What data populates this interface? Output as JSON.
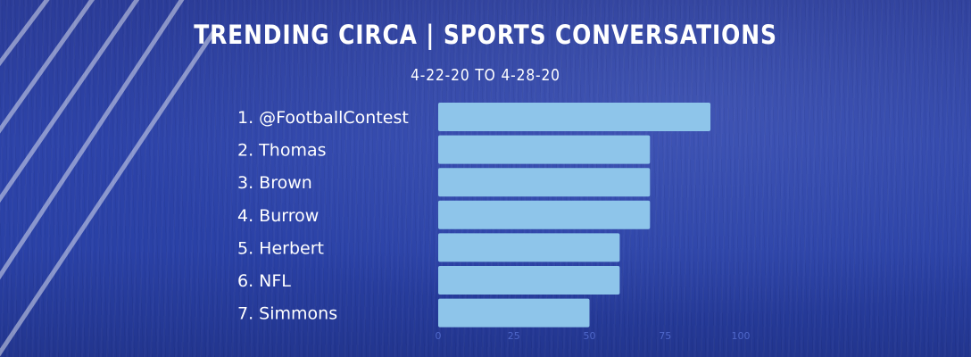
{
  "header": {
    "title": "TRENDING CIRCA | SPORTS CONVERSATIONS",
    "subtitle": "4-22-20  TO  4-28-20"
  },
  "colors": {
    "background": "#2a3f9f",
    "bar": "#8ec5ea",
    "tick_text": "#4f67c9",
    "label_text": "#ffffff"
  },
  "chart_data": {
    "type": "bar",
    "orientation": "horizontal",
    "categories": [
      "1. @FootballContest",
      "2. Thomas",
      "3. Brown",
      "4. Burrow",
      "5. Herbert",
      "6. NFL",
      "7. Simmons"
    ],
    "values": [
      90,
      70,
      70,
      70,
      60,
      60,
      50
    ],
    "xlim": [
      0,
      100
    ],
    "xticks": [
      0,
      25,
      50,
      75,
      100
    ],
    "grid": false,
    "legend": "none"
  }
}
